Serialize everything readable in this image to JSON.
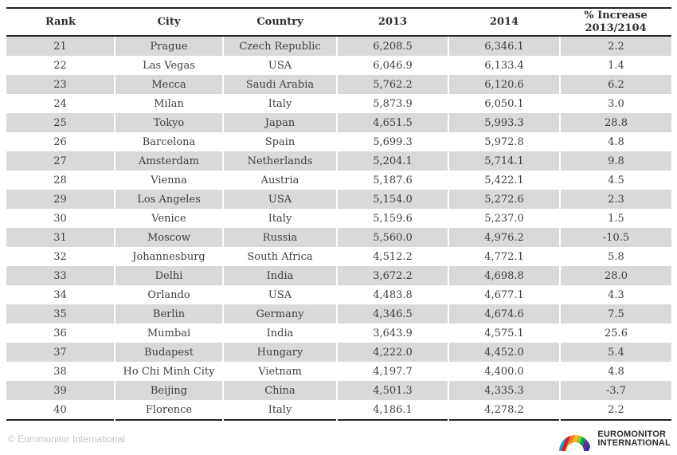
{
  "chart_data": {
    "type": "table",
    "columns": [
      "Rank",
      "City",
      "Country",
      "2013",
      "2014",
      "% Increase 2013/2104"
    ],
    "rows": [
      [
        "21",
        "Prague",
        "Czech Republic",
        "6,208.5",
        "6,346.1",
        "2.2"
      ],
      [
        "22",
        "Las Vegas",
        "USA",
        "6,046.9",
        "6,133.4",
        "1.4"
      ],
      [
        "23",
        "Mecca",
        "Saudi Arabia",
        "5,762.2",
        "6,120.6",
        "6.2"
      ],
      [
        "24",
        "Milan",
        "Italy",
        "5,873.9",
        "6,050.1",
        "3.0"
      ],
      [
        "25",
        "Tokyo",
        "Japan",
        "4,651.5",
        "5,993.3",
        "28.8"
      ],
      [
        "26",
        "Barcelona",
        "Spain",
        "5,699.3",
        "5,972.8",
        "4.8"
      ],
      [
        "27",
        "Amsterdam",
        "Netherlands",
        "5,204.1",
        "5,714.1",
        "9.8"
      ],
      [
        "28",
        "Vienna",
        "Austria",
        "5,187.6",
        "5,422.1",
        "4.5"
      ],
      [
        "29",
        "Los Angeles",
        "USA",
        "5,154.0",
        "5,272.6",
        "2.3"
      ],
      [
        "30",
        "Venice",
        "Italy",
        "5,159.6",
        "5,237.0",
        "1.5"
      ],
      [
        "31",
        "Moscow",
        "Russia",
        "5,560.0",
        "4,976.2",
        "-10.5"
      ],
      [
        "32",
        "Johannesburg",
        "South Africa",
        "4,512.2",
        "4,772.1",
        "5.8"
      ],
      [
        "33",
        "Delhi",
        "India",
        "3,672.2",
        "4,698.8",
        "28.0"
      ],
      [
        "34",
        "Orlando",
        "USA",
        "4,483.8",
        "4,677.1",
        "4.3"
      ],
      [
        "35",
        "Berlin",
        "Germany",
        "4,346.5",
        "4,674.6",
        "7.5"
      ],
      [
        "36",
        "Mumbai",
        "India",
        "3,643.9",
        "4,575.1",
        "25.6"
      ],
      [
        "37",
        "Budapest",
        "Hungary",
        "4,222.0",
        "4,452.0",
        "5.4"
      ],
      [
        "38",
        "Ho Chi Minh City",
        "Vietnam",
        "4,197.7",
        "4,400.0",
        "4.8"
      ],
      [
        "39",
        "Beijing",
        "China",
        "4,501.3",
        "4,335.3",
        "-3.7"
      ],
      [
        "40",
        "Florence",
        "Italy",
        "4,186.1",
        "4,278.2",
        "2.2"
      ]
    ]
  },
  "footer": {
    "copyright": "© Euromonitor International"
  },
  "logo": {
    "line1": "EUROMONITOR",
    "line2": "INTERNATIONAL",
    "stripe_colors": [
      "#00b0ad",
      "#0076bb",
      "#00aeef",
      "#e31b23",
      "#f58220",
      "#fdb913",
      "#8dc63f",
      "#00a551",
      "#652d90",
      "#2b3990"
    ]
  },
  "colors": {
    "row_stripe": "#d9d9d9",
    "table_border": "#232323",
    "cell_text": "#3f3f3f",
    "copyright_text": "#c4c4c4"
  }
}
